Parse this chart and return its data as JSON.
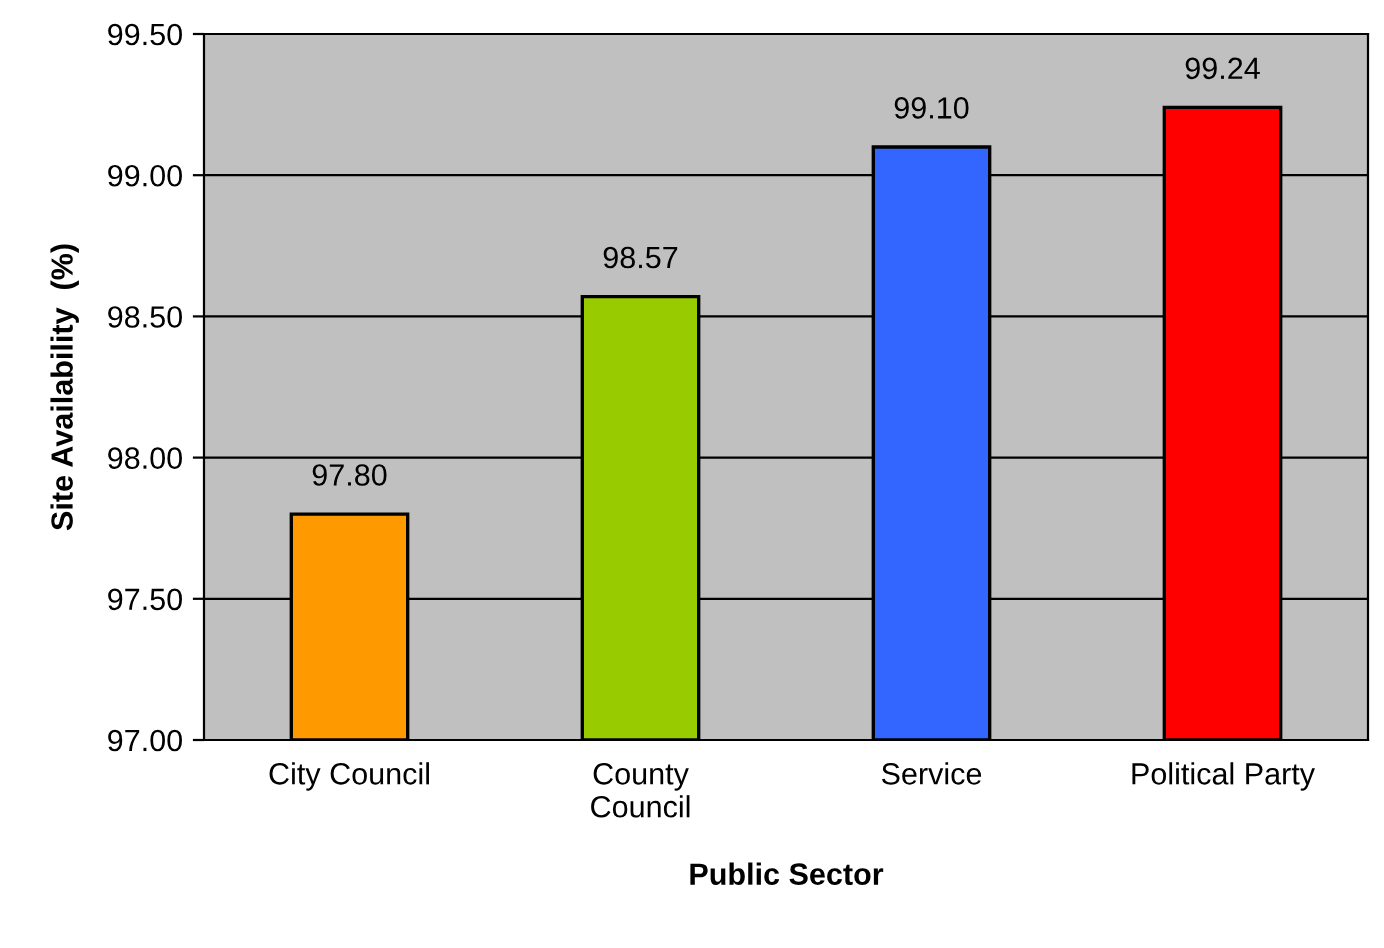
{
  "chart_data": {
    "type": "bar",
    "xlabel": "Public Sector",
    "ylabel": "Site Availability  (%)",
    "categories": [
      "City Council",
      "County\nCouncil",
      "Service",
      "Political Party"
    ],
    "values": [
      97.8,
      98.57,
      99.1,
      99.24
    ],
    "value_labels": [
      "97.80",
      "98.57",
      "99.10",
      "99.24"
    ],
    "colors": [
      "#ff9900",
      "#99cc00",
      "#3366ff",
      "#ff0000"
    ],
    "ylim": [
      97.0,
      99.5
    ],
    "yticks": [
      {
        "value": 97.0,
        "label": "97.00"
      },
      {
        "value": 97.5,
        "label": "97.50"
      },
      {
        "value": 98.0,
        "label": "98.00"
      },
      {
        "value": 98.5,
        "label": "98.50"
      },
      {
        "value": 99.0,
        "label": "99.00"
      },
      {
        "value": 99.5,
        "label": "99.50"
      }
    ],
    "grid": "y",
    "legend": false
  }
}
